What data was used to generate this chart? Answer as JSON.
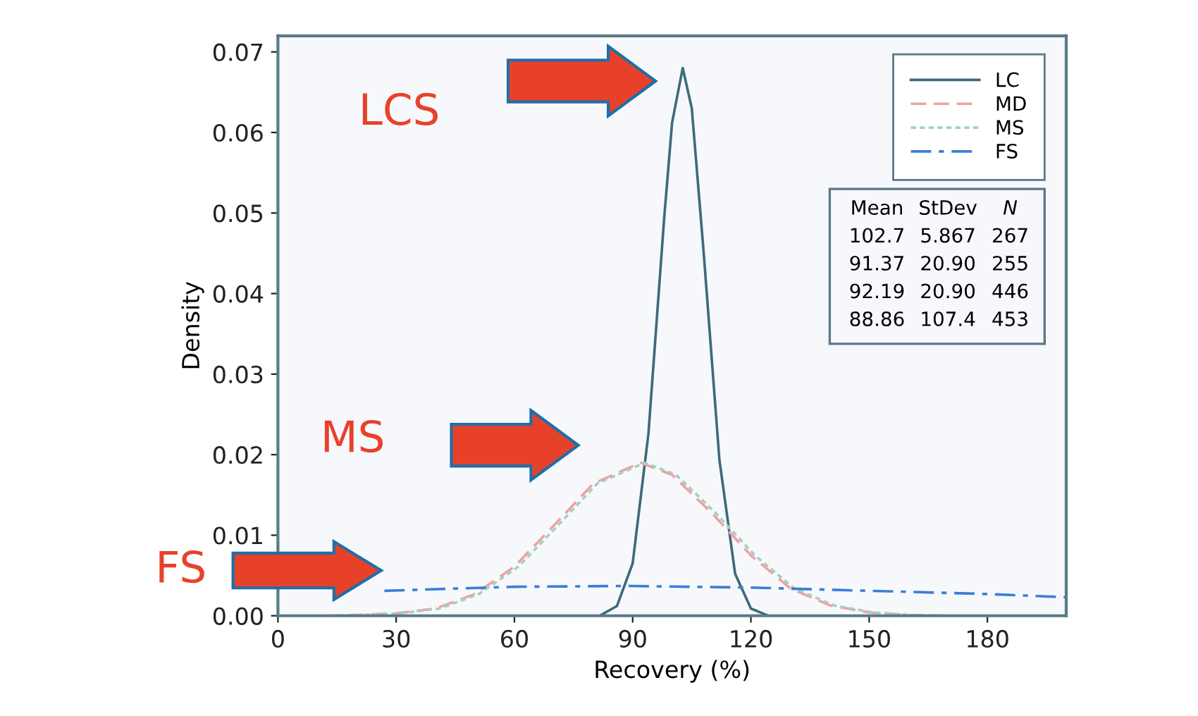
{
  "chart_data": {
    "type": "line",
    "xlabel": "Recovery (%)",
    "ylabel": "Density",
    "xlim": [
      0,
      200
    ],
    "ylim": [
      0,
      0.072
    ],
    "xticks": [
      0,
      30,
      60,
      90,
      120,
      150,
      180
    ],
    "yticks": [
      {
        "value": 0,
        "label": "0.00"
      },
      {
        "value": 0.01,
        "label": "0.01"
      },
      {
        "value": 0.02,
        "label": "0.02"
      },
      {
        "value": 0.03,
        "label": "0.03"
      },
      {
        "value": 0.04,
        "label": "0.04"
      },
      {
        "value": 0.05,
        "label": "0.05"
      },
      {
        "value": 0.06,
        "label": "0.06"
      },
      {
        "value": 0.07,
        "label": "0.07"
      }
    ],
    "grid": false,
    "legend": "top right",
    "marker": "none",
    "series": [
      {
        "name": "LC",
        "color": "#3d6b7a",
        "line_style": "solid",
        "x": [
          82,
          86,
          90,
          94,
          98,
          100,
          102.7,
          105,
          108,
          112,
          116,
          120,
          124
        ],
        "values": [
          0.0001,
          0.0012,
          0.0065,
          0.0226,
          0.0494,
          0.0612,
          0.068,
          0.063,
          0.0452,
          0.0194,
          0.0052,
          0.0009,
          0.0001
        ]
      },
      {
        "name": "MD",
        "color": "#f2a0a0",
        "line_style": "dashed",
        "x": [
          12,
          20,
          30,
          40,
          50,
          60,
          70,
          80,
          92,
          100,
          110,
          120,
          130,
          140,
          150,
          160,
          170
        ],
        "values": [
          0,
          0.0001,
          0.0003,
          0.0009,
          0.0027,
          0.0061,
          0.0112,
          0.0164,
          0.019,
          0.0175,
          0.0128,
          0.0075,
          0.0034,
          0.0013,
          0.0004,
          0.0001,
          0
        ]
      },
      {
        "name": "MS",
        "color": "#9fd3c0",
        "line_style": "dotted",
        "x": [
          13,
          21,
          31,
          41,
          51,
          61,
          71,
          81,
          93,
          101,
          111,
          121,
          131,
          141,
          151,
          161,
          171
        ],
        "values": [
          0,
          0.0001,
          0.0003,
          0.0009,
          0.0027,
          0.0061,
          0.0112,
          0.0164,
          0.019,
          0.0175,
          0.0128,
          0.0075,
          0.0034,
          0.0013,
          0.0004,
          0.0001,
          0
        ]
      },
      {
        "name": "FS",
        "color": "#3a7fd5",
        "line_style": "dashdot",
        "x": [
          27,
          60,
          89,
          120,
          150,
          180,
          200
        ],
        "values": [
          0.0031,
          0.0036,
          0.0037,
          0.0035,
          0.0031,
          0.0027,
          0.0023
        ]
      }
    ],
    "annotations": [
      "LCS",
      "MS",
      "FS",
      "Mean StDev N",
      "102.7 5.867 267",
      "91.37 20.90 255",
      "92.19 20.90 446",
      "88.86 107.4 453"
    ]
  }
}
